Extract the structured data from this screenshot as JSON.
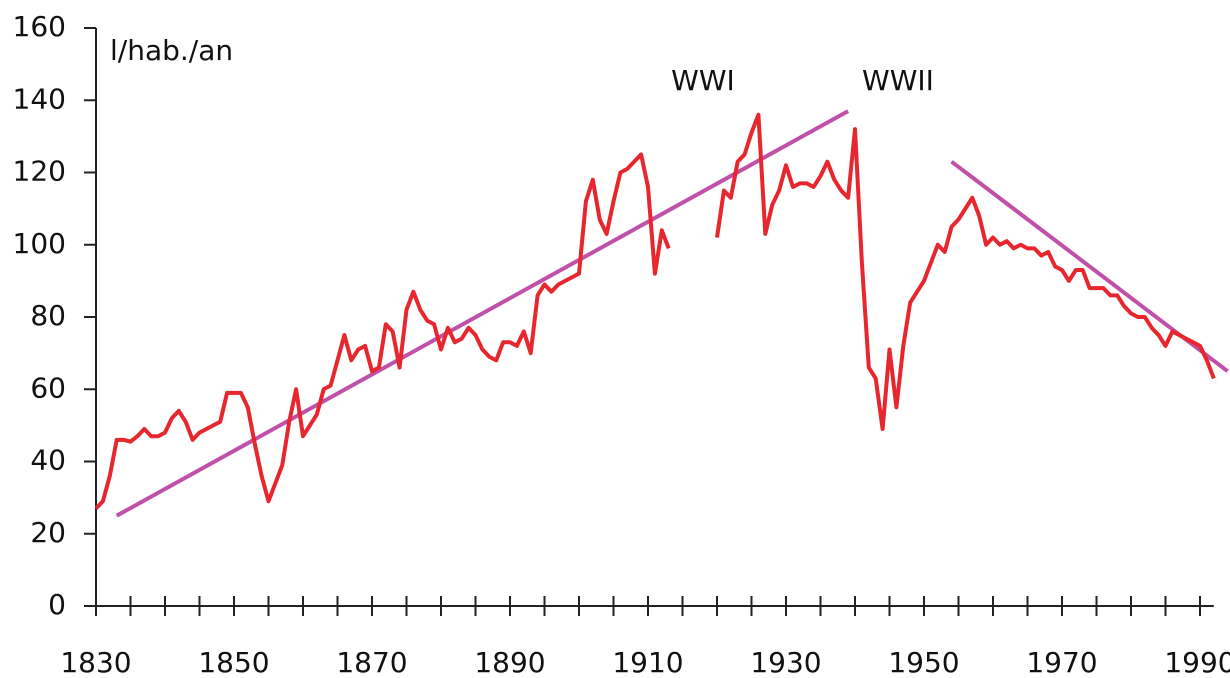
{
  "chart_data": {
    "type": "line",
    "y_label": "l/hab./an",
    "annotations": [
      "WWI",
      "WWII"
    ],
    "x": [
      1830,
      1831,
      1832,
      1833,
      1834,
      1835,
      1836,
      1837,
      1838,
      1839,
      1840,
      1841,
      1842,
      1843,
      1844,
      1845,
      1846,
      1847,
      1848,
      1849,
      1850,
      1851,
      1852,
      1853,
      1854,
      1855,
      1856,
      1857,
      1858,
      1859,
      1860,
      1861,
      1862,
      1863,
      1864,
      1865,
      1866,
      1867,
      1868,
      1869,
      1870,
      1871,
      1872,
      1873,
      1874,
      1875,
      1876,
      1877,
      1878,
      1879,
      1880,
      1881,
      1882,
      1883,
      1884,
      1885,
      1886,
      1887,
      1888,
      1889,
      1890,
      1891,
      1892,
      1893,
      1894,
      1895,
      1896,
      1897,
      1898,
      1899,
      1900,
      1901,
      1902,
      1903,
      1904,
      1905,
      1906,
      1907,
      1908,
      1909,
      1910,
      1911,
      1912,
      1913,
      1914,
      1915,
      1916,
      1917,
      1918,
      1919,
      1920,
      1921,
      1922,
      1923,
      1924,
      1925,
      1926,
      1927,
      1928,
      1929,
      1930,
      1931,
      1932,
      1933,
      1934,
      1935,
      1936,
      1937,
      1938,
      1939,
      1940,
      1941,
      1942,
      1943,
      1944,
      1945,
      1946,
      1947,
      1948,
      1949,
      1950,
      1951,
      1952,
      1953,
      1954,
      1955,
      1956,
      1957,
      1958,
      1959,
      1960,
      1961,
      1962,
      1963,
      1964,
      1965,
      1966,
      1967,
      1968,
      1969,
      1970,
      1971,
      1972,
      1973,
      1974,
      1975,
      1976,
      1977,
      1978,
      1979,
      1980,
      1981,
      1982,
      1983,
      1984,
      1985,
      1986,
      1987,
      1988,
      1989,
      1990,
      1991,
      1992
    ],
    "series": [
      {
        "color": "#e8262d",
        "values": [
          27,
          29,
          36,
          46,
          46,
          45.5,
          47,
          49,
          47,
          47,
          48,
          52,
          54,
          51,
          46,
          48,
          49,
          50,
          51,
          59,
          59,
          59,
          55,
          45,
          36,
          29,
          34,
          39,
          51,
          60,
          47,
          50,
          53,
          60,
          61,
          68,
          75,
          68,
          71,
          72,
          65,
          66,
          78,
          76,
          66,
          82,
          87,
          82,
          79,
          78,
          71,
          77,
          73,
          74,
          77,
          75,
          71,
          69,
          68,
          73,
          73,
          72,
          76,
          70,
          86,
          89,
          87,
          89,
          90,
          91,
          92,
          112,
          118,
          107,
          103,
          112,
          120,
          121,
          123,
          125,
          116,
          92,
          104,
          99,
          null,
          null,
          null,
          null,
          null,
          null,
          102,
          115,
          113,
          123,
          125,
          131,
          136,
          103,
          111,
          115,
          122,
          116,
          117,
          117,
          116,
          119,
          123,
          118,
          115,
          113,
          132,
          95,
          66,
          63,
          49,
          71,
          55,
          72,
          84,
          87,
          90,
          95,
          100,
          98,
          105,
          107,
          110,
          113,
          108,
          100,
          102,
          100,
          101,
          99,
          100,
          99,
          99,
          97,
          98,
          94,
          93,
          90,
          93,
          93,
          88,
          88,
          88,
          86,
          86,
          83,
          81,
          80,
          80,
          77,
          75,
          72,
          76,
          75,
          74,
          73,
          72,
          68,
          63
        ]
      }
    ],
    "trend_lines": [
      {
        "color": "#c150a8",
        "x": [
          1833,
          1939
        ],
        "values": [
          25,
          137
        ]
      },
      {
        "color": "#c150a8",
        "x": [
          1954,
          1994
        ],
        "values": [
          123,
          65
        ]
      }
    ],
    "xlim": [
      1830,
      1992
    ],
    "xticks": [
      1830,
      1850,
      1870,
      1890,
      1910,
      1930,
      1950,
      1970,
      1990
    ],
    "xminor_ticks": [
      1830,
      1835,
      1840,
      1845,
      1850,
      1855,
      1860,
      1865,
      1870,
      1875,
      1880,
      1885,
      1890,
      1895,
      1900,
      1905,
      1910,
      1915,
      1920,
      1925,
      1930,
      1935,
      1940,
      1945,
      1950,
      1955,
      1960,
      1965,
      1970,
      1975,
      1980,
      1985,
      1990
    ],
    "ylim": [
      0,
      160
    ],
    "yticks": [
      0,
      20,
      40,
      60,
      80,
      100,
      120,
      140,
      160
    ],
    "grid": false
  }
}
